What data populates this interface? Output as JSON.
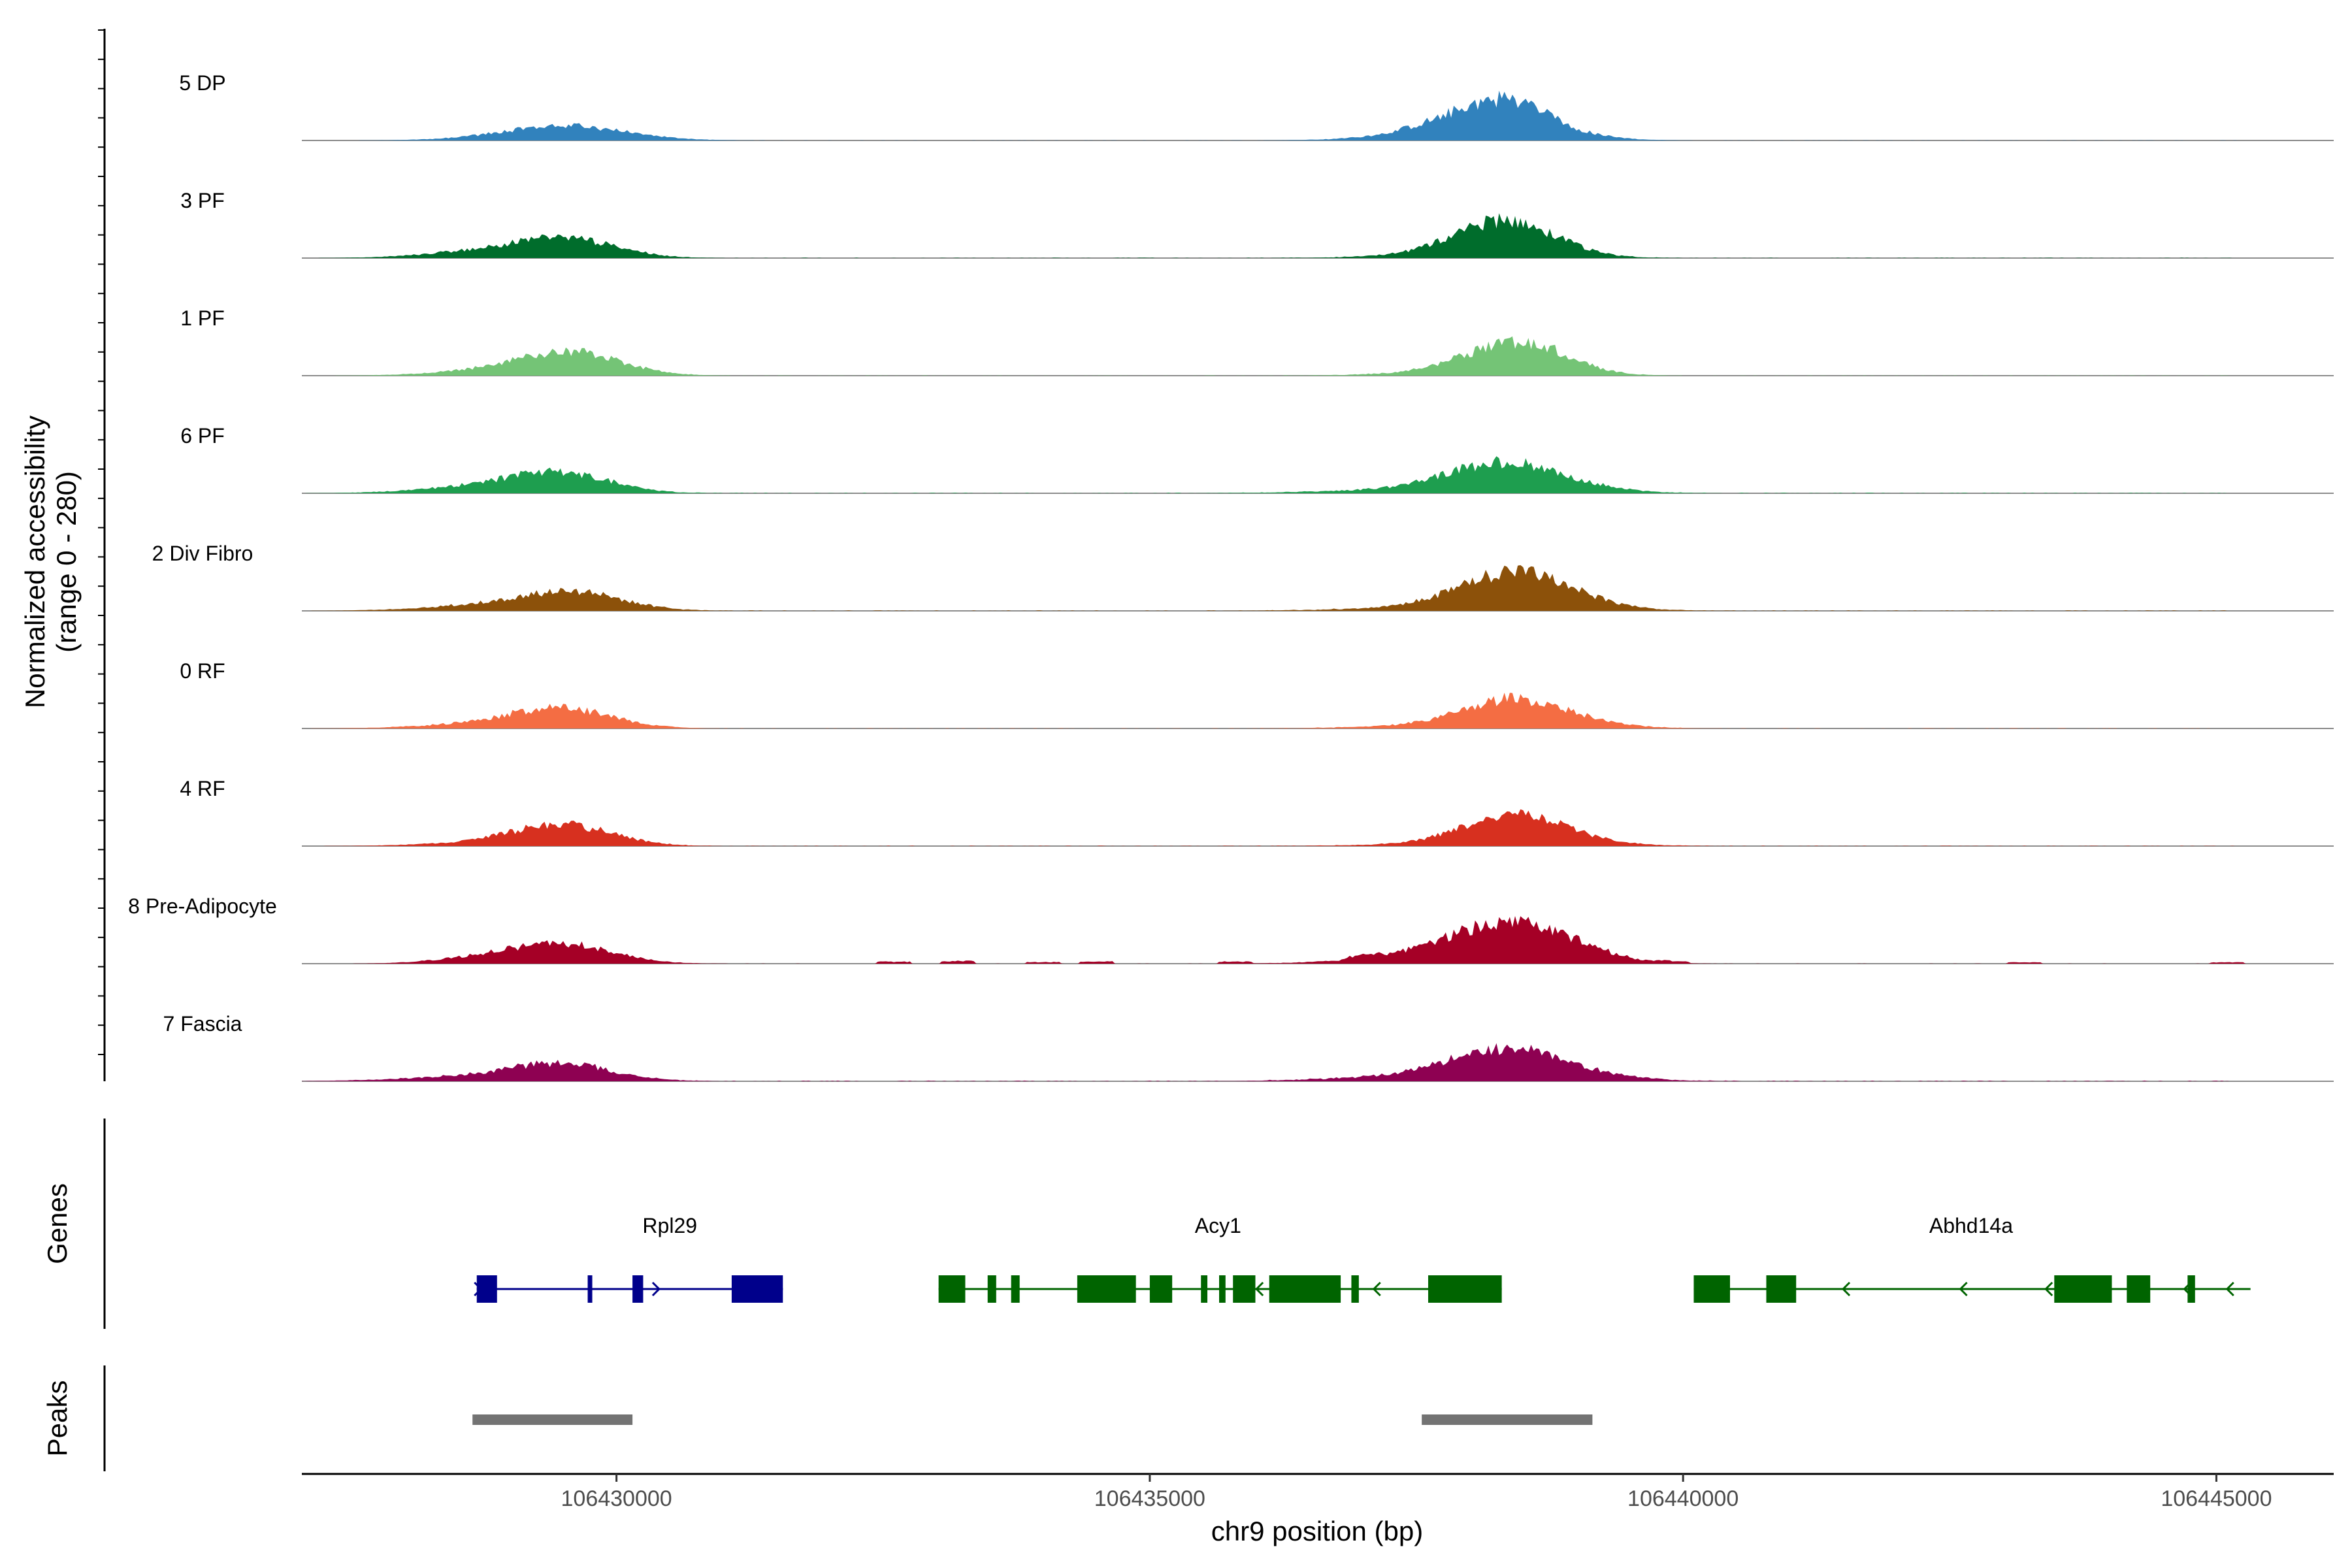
{
  "chart_data": {
    "type": "area",
    "panels": {
      "coverage": {
        "ylabel_line1": "Normalized accessibility",
        "ylabel_line2": "(range 0 - 280)",
        "y_range": [
          0,
          280
        ],
        "tracks": [
          {
            "label": "5 DP",
            "color": "#3182BD",
            "peaks": [
              [
                106429550,
                30,
                1200
              ],
              [
                106429300,
                8,
                1400
              ],
              [
                106438200,
                70,
                1200
              ],
              [
                106438400,
                32,
                700
              ],
              [
                106437900,
                10,
                1500
              ]
            ],
            "noise": 0.5,
            "spots": []
          },
          {
            "label": "3 PF",
            "color": "#006D2C",
            "peaks": [
              [
                106429550,
                45,
                1000
              ],
              [
                106428800,
                18,
                1200
              ],
              [
                106438300,
                72,
                1000
              ],
              [
                106438500,
                18,
                900
              ],
              [
                106438000,
                10,
                1500
              ]
            ],
            "noise": 1.0,
            "spots": []
          },
          {
            "label": "1 PF",
            "color": "#74C476",
            "peaks": [
              [
                106429600,
                55,
                1000
              ],
              [
                106428900,
                14,
                1200
              ],
              [
                106438400,
                72,
                1000
              ],
              [
                106438700,
                14,
                800
              ],
              [
                106437900,
                8,
                1400
              ]
            ],
            "noise": 0.8,
            "spots": []
          },
          {
            "label": "6 PF",
            "color": "#1E9E4F",
            "peaks": [
              [
                106429500,
                45,
                1000
              ],
              [
                106428800,
                18,
                1300
              ],
              [
                106438300,
                65,
                1100
              ],
              [
                106438800,
                12,
                1200
              ],
              [
                106437600,
                10,
                1800
              ]
            ],
            "noise": 1.6,
            "spots": []
          },
          {
            "label": "2 Div Fibro",
            "color": "#8C510A",
            "peaks": [
              [
                106429600,
                45,
                1000
              ],
              [
                106428800,
                14,
                1300
              ],
              [
                106438400,
                85,
                1100
              ],
              [
                106438900,
                12,
                1100
              ],
              [
                106437700,
                8,
                1700
              ]
            ],
            "noise": 1.3,
            "spots": []
          },
          {
            "label": "0 RF",
            "color": "#F46D43",
            "peaks": [
              [
                106429500,
                47,
                1000
              ],
              [
                106428800,
                12,
                1300
              ],
              [
                106438400,
                64,
                1000
              ],
              [
                106438900,
                12,
                1100
              ],
              [
                106437800,
                8,
                1500
              ]
            ],
            "noise": 0.9,
            "spots": []
          },
          {
            "label": "4 RF",
            "color": "#D7301F",
            "peaks": [
              [
                106429500,
                52,
                1000
              ],
              [
                106428800,
                8,
                1300
              ],
              [
                106438400,
                72,
                1000
              ],
              [
                106438900,
                10,
                1100
              ],
              [
                106437800,
                5,
                1500
              ]
            ],
            "noise": 1.0,
            "spots": []
          },
          {
            "label": "8 Pre-Adipocyte",
            "color": "#A50026",
            "peaks": [
              [
                106429500,
                50,
                1000
              ],
              [
                106428700,
                14,
                900
              ],
              [
                106438300,
                86,
                1200
              ],
              [
                106438800,
                28,
                1000
              ],
              [
                106437500,
                14,
                1400
              ]
            ],
            "noise": 0.3,
            "spots": [
              [
                106432600,
                6
              ],
              [
                106433200,
                8
              ],
              [
                106434000,
                5
              ],
              [
                106434500,
                7
              ],
              [
                106435800,
                6
              ],
              [
                106437000,
                8
              ],
              [
                106439900,
                5
              ],
              [
                106443200,
                4
              ],
              [
                106445100,
                4
              ]
            ]
          },
          {
            "label": "7 Fascia",
            "color": "#8E0152",
            "peaks": [
              [
                106429500,
                40,
                1000
              ],
              [
                106428700,
                12,
                1500
              ],
              [
                106438300,
                68,
                1100
              ],
              [
                106438900,
                18,
                1200
              ],
              [
                106437500,
                12,
                1600
              ]
            ],
            "noise": 1.8,
            "spots": []
          }
        ]
      },
      "genes": {
        "title": "Genes",
        "items": [
          {
            "name": "Rpl29",
            "color": "#00008B",
            "start": 106428690,
            "end": 106431560,
            "label_x": 106430500,
            "direction": "+",
            "exons": [
              [
                106428690,
                106428880
              ],
              [
                106429730,
                106429760
              ],
              [
                106430150,
                106430250
              ],
              [
                106431080,
                106431560
              ]
            ],
            "arrows": [
              106428730,
              106430400
            ]
          },
          {
            "name": "Acy1",
            "color": "#006400",
            "start": 106433020,
            "end": 106438300,
            "label_x": 106435640,
            "direction": "-",
            "exons": [
              [
                106433020,
                106433270
              ],
              [
                106433480,
                106433560
              ],
              [
                106433700,
                106433780
              ],
              [
                106434320,
                106434870
              ],
              [
                106435000,
                106435210
              ],
              [
                106435480,
                106435540
              ],
              [
                106435650,
                106435710
              ],
              [
                106435780,
                106435990
              ],
              [
                106436120,
                106436790
              ],
              [
                106436890,
                106436960
              ],
              [
                106437610,
                106438300
              ]
            ],
            "arrows": [
              106434400,
              106436000,
              106437100
            ]
          },
          {
            "name": "Abhd14a",
            "color": "#006400",
            "start": 106440100,
            "end": 106445320,
            "label_x": 106442700,
            "direction": "-",
            "exons": [
              [
                106440100,
                106440440
              ],
              [
                106440780,
                106441060
              ],
              [
                106443480,
                106444020
              ],
              [
                106444160,
                106444380
              ],
              [
                106444730,
                106444800
              ]
            ],
            "arrows": [
              106441500,
              106442600,
              106443400,
              106444700,
              106445100
            ]
          }
        ]
      },
      "peaks": {
        "title": "Peaks",
        "color": "#737373",
        "regions": [
          [
            106428650,
            106430150
          ],
          [
            106437550,
            106439150
          ]
        ]
      }
    },
    "x_axis": {
      "label": "chr9 position (bp)",
      "range": [
        106427050,
        106446100
      ],
      "ticks": [
        106430000,
        106435000,
        106440000,
        106445000
      ],
      "tick_labels": [
        "106430000",
        "106435000",
        "106440000",
        "106445000"
      ]
    }
  }
}
